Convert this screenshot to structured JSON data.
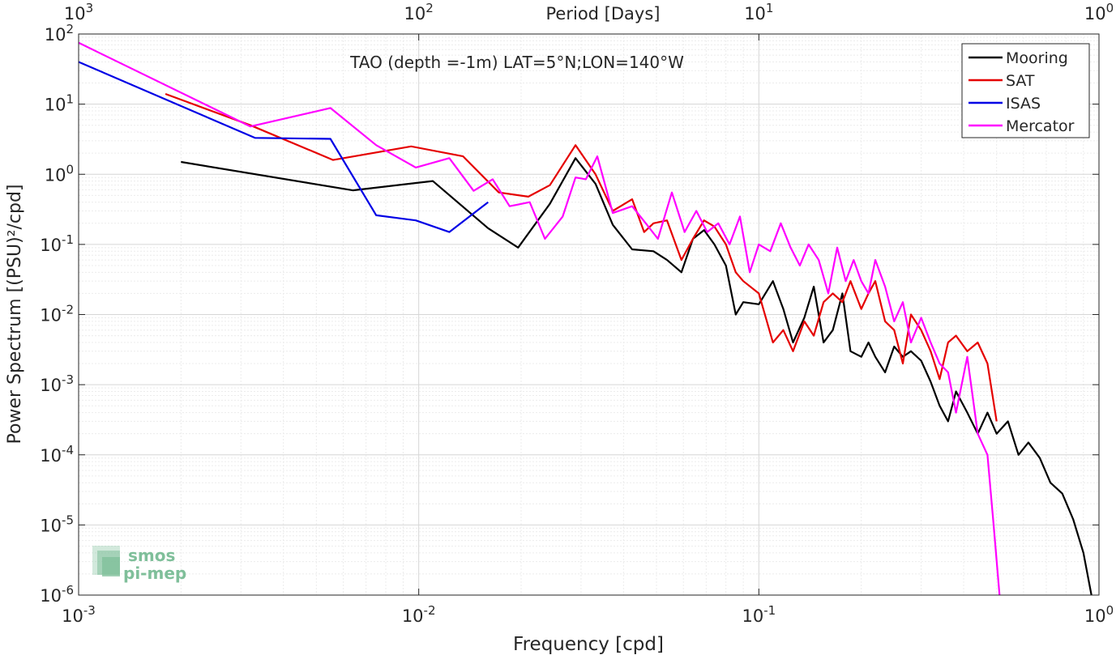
{
  "chart_data": {
    "type": "line",
    "title": "TAO (depth =-1m) LAT=5°N;LON=140°W",
    "xlabel": "Frequency [cpd]",
    "ylabel": "Power Spectrum [(PSU)²/cpd]",
    "top_xlabel": "Period [Days]",
    "xscale": "log",
    "yscale": "log",
    "xlim": [
      0.001,
      1
    ],
    "ylim": [
      1e-06,
      100
    ],
    "grid": true,
    "legend_position": "top-right",
    "x_ticks": [
      {
        "value": 0.001,
        "base": "10",
        "exp": "-3"
      },
      {
        "value": 0.01,
        "base": "10",
        "exp": "-2"
      },
      {
        "value": 0.1,
        "base": "10",
        "exp": "-1"
      },
      {
        "value": 1,
        "base": "10",
        "exp": "0"
      }
    ],
    "top_ticks": [
      {
        "value": 0.001,
        "base": "10",
        "exp": "3"
      },
      {
        "value": 0.01,
        "base": "10",
        "exp": "2"
      },
      {
        "value": 0.1,
        "base": "10",
        "exp": "1"
      },
      {
        "value": 1,
        "base": "10",
        "exp": "0"
      }
    ],
    "y_ticks": [
      {
        "value": 100,
        "base": "10",
        "exp": "2"
      },
      {
        "value": 10,
        "base": "10",
        "exp": "1"
      },
      {
        "value": 1,
        "base": "10",
        "exp": "0"
      },
      {
        "value": 0.1,
        "base": "10",
        "exp": "-1"
      },
      {
        "value": 0.01,
        "base": "10",
        "exp": "-2"
      },
      {
        "value": 0.001,
        "base": "10",
        "exp": "-3"
      },
      {
        "value": 0.0001,
        "base": "10",
        "exp": "-4"
      },
      {
        "value": 1e-05,
        "base": "10",
        "exp": "-5"
      },
      {
        "value": 1e-06,
        "base": "10",
        "exp": "-6"
      }
    ],
    "series": [
      {
        "name": "Mooring",
        "color": "#000000",
        "x": [
          0.002,
          0.0064,
          0.011,
          0.016,
          0.0196,
          0.0243,
          0.0289,
          0.0331,
          0.0372,
          0.0424,
          0.049,
          0.0537,
          0.0592,
          0.064,
          0.069,
          0.074,
          0.08,
          0.0855,
          0.09,
          0.1,
          0.11,
          0.118,
          0.126,
          0.136,
          0.145,
          0.155,
          0.165,
          0.176,
          0.186,
          0.2,
          0.21,
          0.22,
          0.235,
          0.25,
          0.265,
          0.28,
          0.3,
          0.32,
          0.34,
          0.36,
          0.38,
          0.41,
          0.44,
          0.47,
          0.5,
          0.54,
          0.58,
          0.62,
          0.67,
          0.72,
          0.78,
          0.84,
          0.9,
          0.95
        ],
        "y": [
          1.5,
          0.59,
          0.8,
          0.17,
          0.09,
          0.38,
          1.7,
          0.73,
          0.19,
          0.085,
          0.08,
          0.06,
          0.04,
          0.12,
          0.16,
          0.1,
          0.05,
          0.01,
          0.015,
          0.014,
          0.03,
          0.012,
          0.004,
          0.009,
          0.025,
          0.004,
          0.006,
          0.02,
          0.003,
          0.0025,
          0.004,
          0.0025,
          0.0015,
          0.0035,
          0.0025,
          0.003,
          0.0022,
          0.0011,
          0.0005,
          0.0003,
          0.0008,
          0.0004,
          0.0002,
          0.0004,
          0.0002,
          0.0003,
          0.0001,
          0.00015,
          9e-05,
          4e-05,
          2.8e-05,
          1.2e-05,
          4e-06,
          1e-06
        ]
      },
      {
        "name": "SAT",
        "color": "#e50000",
        "x": [
          0.0018,
          0.0032,
          0.0056,
          0.0095,
          0.0135,
          0.0172,
          0.021,
          0.0243,
          0.0289,
          0.0331,
          0.0372,
          0.0424,
          0.046,
          0.049,
          0.0537,
          0.0592,
          0.064,
          0.069,
          0.074,
          0.08,
          0.0855,
          0.09,
          0.1,
          0.11,
          0.118,
          0.126,
          0.136,
          0.145,
          0.155,
          0.165,
          0.176,
          0.186,
          0.2,
          0.21,
          0.22,
          0.235,
          0.25,
          0.265,
          0.28,
          0.3,
          0.32,
          0.34,
          0.36,
          0.38,
          0.41,
          0.44,
          0.47,
          0.5
        ],
        "y": [
          14,
          5,
          1.6,
          2.5,
          1.8,
          0.55,
          0.48,
          0.7,
          2.6,
          1.0,
          0.3,
          0.44,
          0.15,
          0.2,
          0.22,
          0.06,
          0.12,
          0.22,
          0.18,
          0.1,
          0.04,
          0.03,
          0.02,
          0.004,
          0.006,
          0.003,
          0.008,
          0.005,
          0.015,
          0.02,
          0.015,
          0.03,
          0.012,
          0.02,
          0.03,
          0.008,
          0.006,
          0.002,
          0.01,
          0.006,
          0.003,
          0.0012,
          0.004,
          0.005,
          0.003,
          0.004,
          0.002,
          0.0003
        ]
      },
      {
        "name": "ISAS",
        "color": "#0000e5",
        "x": [
          0.001,
          0.0033,
          0.0055,
          0.0075,
          0.0098,
          0.0123,
          0.016
        ],
        "y": [
          40,
          3.3,
          3.2,
          0.26,
          0.22,
          0.15,
          0.4
        ]
      },
      {
        "name": "Mercator",
        "color": "#ff00ff",
        "x": [
          0.001,
          0.0032,
          0.0055,
          0.0075,
          0.0098,
          0.0123,
          0.0145,
          0.0165,
          0.0185,
          0.0212,
          0.0235,
          0.0265,
          0.0289,
          0.031,
          0.0335,
          0.0372,
          0.0424,
          0.0465,
          0.0505,
          0.0555,
          0.0605,
          0.0655,
          0.0705,
          0.076,
          0.082,
          0.088,
          0.094,
          0.1,
          0.108,
          0.116,
          0.124,
          0.132,
          0.14,
          0.15,
          0.16,
          0.17,
          0.18,
          0.19,
          0.2,
          0.21,
          0.22,
          0.235,
          0.25,
          0.265,
          0.28,
          0.3,
          0.32,
          0.34,
          0.36,
          0.38,
          0.41,
          0.44,
          0.47,
          0.49,
          0.51
        ],
        "y": [
          75,
          4.8,
          8.8,
          2.6,
          1.25,
          1.7,
          0.58,
          0.85,
          0.35,
          0.4,
          0.12,
          0.25,
          0.9,
          0.85,
          1.8,
          0.28,
          0.35,
          0.2,
          0.12,
          0.55,
          0.15,
          0.3,
          0.15,
          0.2,
          0.1,
          0.25,
          0.04,
          0.1,
          0.08,
          0.2,
          0.09,
          0.05,
          0.1,
          0.06,
          0.02,
          0.09,
          0.03,
          0.06,
          0.03,
          0.02,
          0.06,
          0.025,
          0.008,
          0.015,
          0.004,
          0.009,
          0.004,
          0.002,
          0.0015,
          0.0004,
          0.0025,
          0.0002,
          0.0001,
          1e-05,
          1e-06
        ]
      }
    ],
    "logo": {
      "line1": "smos",
      "line2": "pi-mep",
      "color": "#7fbf9a"
    }
  }
}
